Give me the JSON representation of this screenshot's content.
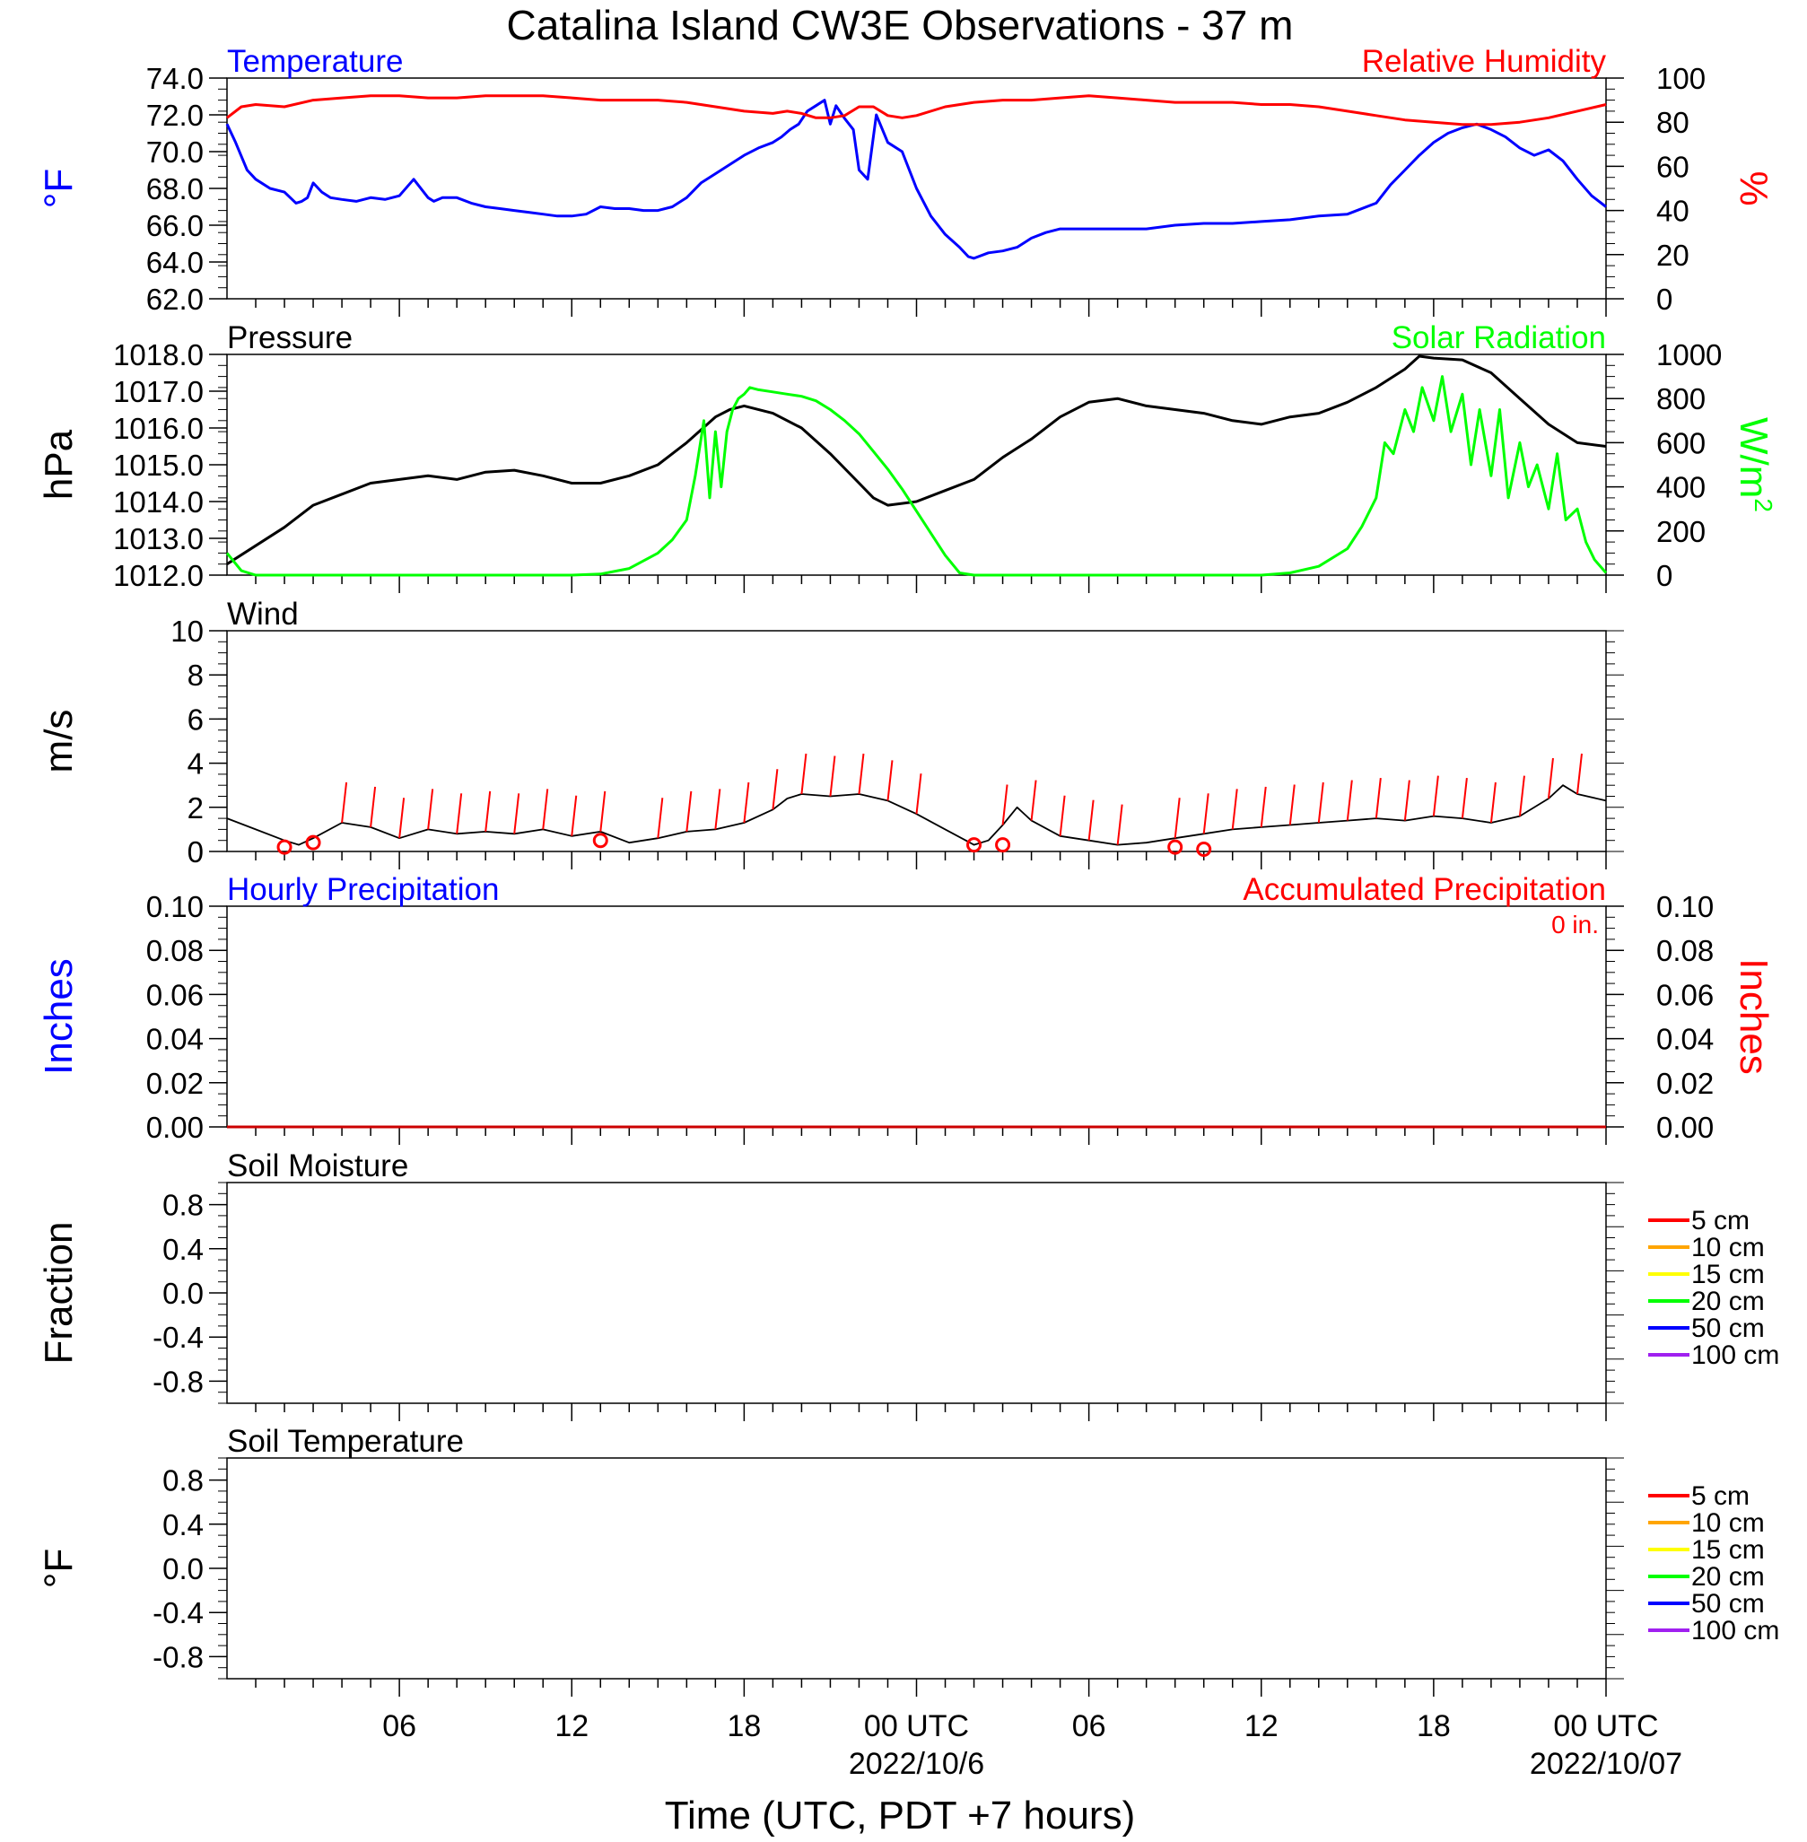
{
  "title": "Catalina Island CW3E Observations - 37 m",
  "xaxis": {
    "label": "Time (UTC, PDT +7 hours)",
    "range_hours": [
      0,
      48
    ],
    "ticks": [
      {
        "hour": 6,
        "label": "06",
        "date": ""
      },
      {
        "hour": 12,
        "label": "12",
        "date": ""
      },
      {
        "hour": 18,
        "label": "18",
        "date": ""
      },
      {
        "hour": 24,
        "label": "00 UTC",
        "date": "2022/10/6"
      },
      {
        "hour": 30,
        "label": "06",
        "date": ""
      },
      {
        "hour": 36,
        "label": "12",
        "date": ""
      },
      {
        "hour": 42,
        "label": "18",
        "date": ""
      },
      {
        "hour": 48,
        "label": "00 UTC",
        "date": "2022/10/07"
      }
    ]
  },
  "legend_depths": [
    {
      "label": "5 cm",
      "color": "#ff0000"
    },
    {
      "label": "10 cm",
      "color": "#ffa500"
    },
    {
      "label": "15 cm",
      "color": "#ffff00"
    },
    {
      "label": "20 cm",
      "color": "#00ff00"
    },
    {
      "label": "50 cm",
      "color": "#0000ff"
    },
    {
      "label": "100 cm",
      "color": "#a020f0"
    }
  ],
  "accum_total_label": "0 in.",
  "chart_data": [
    {
      "type": "line",
      "left_title": "Temperature",
      "left_title_color": "#0000ff",
      "right_title": "Relative Humidity",
      "right_title_color": "#ff0000",
      "left_label": "°F",
      "left_label_color": "#0000ff",
      "right_label": "%",
      "right_label_color": "#ff0000",
      "left_ylim": [
        62,
        74
      ],
      "left_ticks": [
        "62.0",
        "64.0",
        "66.0",
        "68.0",
        "70.0",
        "72.0",
        "74.0"
      ],
      "right_ylim": [
        0,
        100
      ],
      "right_ticks": [
        "0",
        "20",
        "40",
        "60",
        "80",
        "100"
      ],
      "series": [
        {
          "name": "Temperature",
          "axis": "left",
          "color": "#0000ff",
          "x": [
            0,
            0.3,
            0.7,
            1,
            1.5,
            2,
            2.4,
            2.6,
            2.8,
            3,
            3.3,
            3.6,
            4,
            4.5,
            5,
            5.5,
            6,
            6.5,
            7,
            7.2,
            7.5,
            8,
            8.5,
            9,
            9.5,
            10,
            10.5,
            11,
            11.5,
            12,
            12.5,
            13,
            13.5,
            14,
            14.5,
            15,
            15.5,
            16,
            16.5,
            17,
            17.5,
            18,
            18.5,
            19,
            19.3,
            19.6,
            19.9,
            20.2,
            20.5,
            20.8,
            21,
            21.2,
            21.5,
            21.8,
            22,
            22.3,
            22.6,
            23,
            23.5,
            24,
            24.5,
            25,
            25.5,
            25.8,
            26,
            26.5,
            27,
            27.5,
            28,
            28.5,
            29,
            30,
            31,
            32,
            33,
            34,
            35,
            36,
            37,
            38,
            39,
            40,
            40.5,
            41,
            41.5,
            42,
            42.5,
            43,
            43.5,
            44,
            44.5,
            45,
            45.5,
            46,
            46.5,
            47,
            47.5,
            48
          ],
          "values": [
            71.5,
            70.5,
            69,
            68.5,
            68,
            67.8,
            67.2,
            67.3,
            67.5,
            68.3,
            67.8,
            67.5,
            67.4,
            67.3,
            67.5,
            67.4,
            67.6,
            68.5,
            67.5,
            67.3,
            67.5,
            67.5,
            67.2,
            67,
            66.9,
            66.8,
            66.7,
            66.6,
            66.5,
            66.5,
            66.6,
            67,
            66.9,
            66.9,
            66.8,
            66.8,
            67,
            67.5,
            68.3,
            68.8,
            69.3,
            69.8,
            70.2,
            70.5,
            70.8,
            71.2,
            71.5,
            72.2,
            72.5,
            72.8,
            71.5,
            72.5,
            71.8,
            71.2,
            69,
            68.5,
            72,
            70.5,
            70,
            68,
            66.5,
            65.5,
            64.8,
            64.3,
            64.2,
            64.5,
            64.6,
            64.8,
            65.3,
            65.6,
            65.8,
            65.8,
            65.8,
            65.8,
            66,
            66.1,
            66.1,
            66.2,
            66.3,
            66.5,
            66.6,
            67.2,
            68.2,
            69,
            69.8,
            70.5,
            71,
            71.3,
            71.5,
            71.2,
            70.8,
            70.2,
            69.8,
            70.1,
            69.5,
            68.5,
            67.6,
            67
          ]
        },
        {
          "name": "Relative Humidity",
          "axis": "right",
          "color": "#ff0000",
          "x": [
            0,
            0.5,
            1,
            2,
            3,
            4,
            5,
            6,
            7,
            8,
            9,
            10,
            11,
            12,
            13,
            14,
            15,
            16,
            17,
            18,
            19,
            19.5,
            20,
            20.5,
            21,
            21.5,
            22,
            22.5,
            23,
            23.5,
            24,
            25,
            26,
            27,
            28,
            29,
            30,
            31,
            32,
            33,
            34,
            35,
            36,
            37,
            38,
            39,
            40,
            41,
            42,
            43,
            44,
            45,
            46,
            47,
            48
          ],
          "values": [
            82,
            87,
            88,
            87,
            90,
            91,
            92,
            92,
            91,
            91,
            92,
            92,
            92,
            91,
            90,
            90,
            90,
            89,
            87,
            85,
            84,
            85,
            84,
            82,
            82,
            83,
            87,
            87,
            83,
            82,
            83,
            87,
            89,
            90,
            90,
            91,
            92,
            91,
            90,
            89,
            89,
            89,
            88,
            88,
            87,
            85,
            83,
            81,
            80,
            79,
            79,
            80,
            82,
            85,
            88
          ]
        }
      ]
    },
    {
      "type": "line",
      "left_title": "Pressure",
      "left_title_color": "#000000",
      "right_title": "Solar Radiation",
      "right_title_color": "#00ff00",
      "left_label": "hPa",
      "left_label_color": "#000000",
      "right_label": "W/m2",
      "right_label_color": "#00ff00",
      "left_ylim": [
        1012,
        1018
      ],
      "left_ticks": [
        "1012.0",
        "1013.0",
        "1014.0",
        "1015.0",
        "1016.0",
        "1017.0",
        "1018.0"
      ],
      "right_ylim": [
        0,
        1000
      ],
      "right_ticks": [
        "0",
        "200",
        "400",
        "600",
        "800",
        "1000"
      ],
      "series": [
        {
          "name": "Pressure",
          "axis": "left",
          "color": "#000000",
          "x": [
            0,
            1,
            2,
            3,
            4,
            5,
            6,
            7,
            8,
            9,
            10,
            11,
            12,
            13,
            14,
            15,
            16,
            17,
            17.5,
            18,
            19,
            20,
            21,
            22,
            22.5,
            23,
            24,
            25,
            26,
            27,
            28,
            29,
            30,
            31,
            32,
            33,
            34,
            35,
            36,
            37,
            38,
            39,
            40,
            41,
            41.5,
            42,
            43,
            44,
            45,
            46,
            47,
            48
          ],
          "values": [
            1012.3,
            1012.8,
            1013.3,
            1013.9,
            1014.2,
            1014.5,
            1014.6,
            1014.7,
            1014.6,
            1014.8,
            1014.85,
            1014.7,
            1014.5,
            1014.5,
            1014.7,
            1015.0,
            1015.6,
            1016.3,
            1016.5,
            1016.6,
            1016.4,
            1016.0,
            1015.3,
            1014.5,
            1014.1,
            1013.9,
            1014.0,
            1014.3,
            1014.6,
            1015.2,
            1015.7,
            1016.3,
            1016.7,
            1016.8,
            1016.6,
            1016.5,
            1016.4,
            1016.2,
            1016.1,
            1016.3,
            1016.4,
            1016.7,
            1017.1,
            1017.6,
            1017.95,
            1017.9,
            1017.85,
            1017.5,
            1016.8,
            1016.1,
            1015.6,
            1015.5
          ]
        },
        {
          "name": "Solar Radiation",
          "axis": "right",
          "color": "#00ff00",
          "x": [
            0,
            0.5,
            1,
            12,
            13,
            14,
            15,
            15.5,
            16,
            16.3,
            16.6,
            16.8,
            17,
            17.2,
            17.4,
            17.6,
            17.8,
            18,
            18.2,
            18.5,
            19,
            19.5,
            20,
            20.5,
            21,
            21.5,
            22,
            22.5,
            23,
            23.5,
            24,
            24.5,
            25,
            25.5,
            26,
            27,
            36,
            37,
            38,
            39,
            39.5,
            40,
            40.3,
            40.6,
            41,
            41.3,
            41.6,
            42,
            42.3,
            42.6,
            43,
            43.3,
            43.6,
            44,
            44.3,
            44.6,
            45,
            45.3,
            45.6,
            46,
            46.3,
            46.6,
            47,
            47.3,
            47.6,
            48
          ],
          "values": [
            100,
            20,
            0,
            0,
            5,
            30,
            100,
            160,
            250,
            450,
            700,
            350,
            650,
            400,
            650,
            750,
            800,
            820,
            850,
            840,
            830,
            820,
            810,
            790,
            750,
            700,
            640,
            560,
            480,
            390,
            290,
            190,
            90,
            10,
            0,
            0,
            0,
            10,
            40,
            120,
            220,
            350,
            600,
            550,
            750,
            650,
            850,
            700,
            900,
            650,
            820,
            500,
            750,
            450,
            750,
            350,
            600,
            400,
            500,
            300,
            550,
            250,
            300,
            150,
            70,
            10
          ]
        }
      ]
    },
    {
      "type": "line",
      "left_title": "Wind",
      "left_title_color": "#000000",
      "left_label": "m/s",
      "left_label_color": "#000000",
      "left_ylim": [
        0,
        10
      ],
      "left_ticks": [
        "0",
        "2",
        "4",
        "6",
        "8",
        "10"
      ],
      "series": [
        {
          "name": "Wind Speed",
          "axis": "left",
          "color": "#000000",
          "x": [
            0,
            1,
            2,
            2.5,
            3,
            4,
            5,
            6,
            7,
            8,
            9,
            10,
            11,
            12,
            13,
            14,
            15,
            16,
            17,
            18,
            19,
            19.5,
            20,
            21,
            22,
            23,
            24,
            25,
            26,
            26.5,
            27,
            27.5,
            28,
            29,
            30,
            31,
            32,
            33,
            34,
            35,
            36,
            37,
            38,
            39,
            40,
            41,
            42,
            43,
            44,
            45,
            46,
            46.5,
            47,
            48
          ],
          "values": [
            1.5,
            1.0,
            0.5,
            0.3,
            0.6,
            1.3,
            1.1,
            0.6,
            1.0,
            0.8,
            0.9,
            0.8,
            1.0,
            0.7,
            0.9,
            0.4,
            0.6,
            0.9,
            1.0,
            1.3,
            1.9,
            2.4,
            2.6,
            2.5,
            2.6,
            2.3,
            1.7,
            1.0,
            0.3,
            0.5,
            1.2,
            2.0,
            1.4,
            0.7,
            0.5,
            0.3,
            0.4,
            0.6,
            0.8,
            1.0,
            1.1,
            1.2,
            1.3,
            1.4,
            1.5,
            1.4,
            1.6,
            1.5,
            1.3,
            1.6,
            2.4,
            3.0,
            2.6,
            2.3
          ]
        },
        {
          "name": "Wind Barbs",
          "axis": "left",
          "color": "#ff0000",
          "x": [
            4,
            5,
            6,
            7,
            8,
            9,
            10,
            11,
            12,
            13,
            15,
            16,
            17,
            18,
            19,
            20,
            21,
            22,
            23,
            24,
            27,
            28,
            29,
            30,
            31,
            33,
            34,
            35,
            36,
            37,
            38,
            39,
            40,
            41,
            42,
            43,
            44,
            45,
            46,
            47
          ],
          "values": [
            1.3,
            1.1,
            0.6,
            1.0,
            0.8,
            0.9,
            0.8,
            1.0,
            0.7,
            0.9,
            0.6,
            0.9,
            1.0,
            1.3,
            1.9,
            2.6,
            2.5,
            2.6,
            2.3,
            1.7,
            1.2,
            1.4,
            0.7,
            0.5,
            0.3,
            0.6,
            0.8,
            1.0,
            1.1,
            1.2,
            1.3,
            1.4,
            1.5,
            1.4,
            1.6,
            1.5,
            1.3,
            1.6,
            2.4,
            2.6
          ]
        },
        {
          "name": "Calm",
          "axis": "left",
          "color": "#ff0000",
          "x": [
            2,
            3,
            13,
            26,
            27,
            33,
            34
          ],
          "values": [
            0.2,
            0.4,
            0.5,
            0.3,
            0.3,
            0.2,
            0.1
          ]
        }
      ]
    },
    {
      "type": "line",
      "left_title": "Hourly Precipitation",
      "left_title_color": "#0000ff",
      "right_title": "Accumulated Precipitation",
      "right_title_color": "#ff0000",
      "left_label": "Inches",
      "left_label_color": "#0000ff",
      "right_label": "Inches",
      "right_label_color": "#ff0000",
      "left_ylim": [
        0,
        0.1
      ],
      "left_ticks": [
        "0.00",
        "0.02",
        "0.04",
        "0.06",
        "0.08",
        "0.10"
      ],
      "right_ylim": [
        0,
        0.1
      ],
      "right_ticks": [
        "0.00",
        "0.02",
        "0.04",
        "0.06",
        "0.08",
        "0.10"
      ],
      "series": [
        {
          "name": "Hourly Precipitation",
          "axis": "left",
          "color": "#0000ff",
          "x": [
            0,
            48
          ],
          "values": [
            0,
            0
          ]
        },
        {
          "name": "Accumulated Precipitation",
          "axis": "right",
          "color": "#cc0000",
          "x": [
            0,
            48
          ],
          "values": [
            0,
            0
          ]
        }
      ]
    },
    {
      "type": "line",
      "left_title": "Soil Moisture",
      "left_title_color": "#000000",
      "left_label": "Fraction",
      "left_label_color": "#000000",
      "left_ylim": [
        -1,
        1
      ],
      "left_ticks": [
        "-0.8",
        "-0.4",
        "0.0",
        "0.4",
        "0.8"
      ],
      "legend": true,
      "series": []
    },
    {
      "type": "line",
      "left_title": "Soil Temperature",
      "left_title_color": "#000000",
      "left_label": "°F",
      "left_label_color": "#000000",
      "left_ylim": [
        -1,
        1
      ],
      "left_ticks": [
        "-0.8",
        "-0.4",
        "0.0",
        "0.4",
        "0.8"
      ],
      "legend": true,
      "series": []
    }
  ]
}
